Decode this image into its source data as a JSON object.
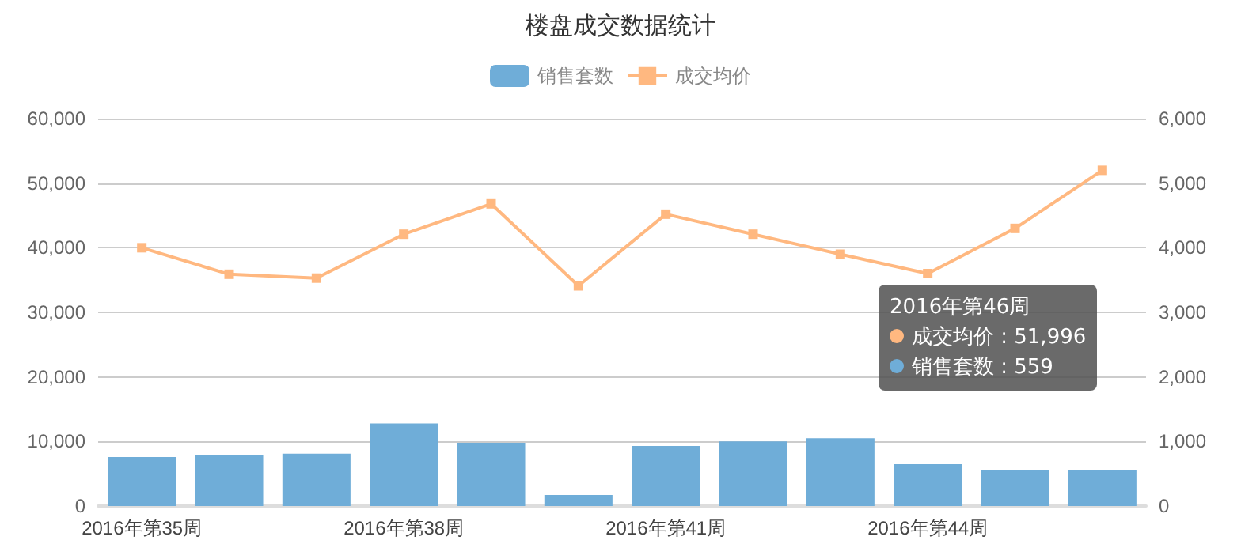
{
  "chart_data": {
    "type": "bar",
    "title": "楼盘成交数据统计",
    "categories": [
      "2016年第35周",
      null,
      null,
      "2016年第38周",
      null,
      null,
      "2016年第41周",
      null,
      null,
      "2016年第44周",
      null,
      null
    ],
    "series": [
      {
        "name": "销售套数",
        "axis": "y2",
        "color": "#6fadd8",
        "values": [
          760,
          790,
          810,
          1280,
          980,
          170,
          930,
          1000,
          1050,
          650,
          550,
          559
        ]
      },
      {
        "name": "成交均价",
        "type": "line",
        "color": "#ffb880",
        "marker": "square",
        "values": [
          40000,
          35900,
          35300,
          42100,
          46800,
          34100,
          45200,
          42100,
          39000,
          36000,
          43000,
          51996
        ]
      }
    ],
    "ylim": [
      0,
      60000
    ],
    "yticks": [
      0,
      {
        "value": 10000,
        "label": "10,000"
      },
      {
        "value": 20000,
        "label": "20,000"
      },
      {
        "value": 30000,
        "label": "30,000"
      },
      {
        "value": 40000,
        "label": "40,000"
      },
      {
        "value": 50000,
        "label": "50,000"
      },
      {
        "value": 60000,
        "label": "60,000"
      }
    ],
    "y2lim": [
      0,
      6000
    ],
    "y2ticks": [
      0,
      {
        "value": 1000,
        "label": "1,000"
      },
      {
        "value": 2000,
        "label": "2,000"
      },
      {
        "value": 3000,
        "label": "3,000"
      },
      {
        "value": 4000,
        "label": "4,000"
      },
      {
        "value": 5000,
        "label": "5,000"
      },
      {
        "value": 6000,
        "label": "6,000"
      }
    ],
    "grid": "y",
    "legend": "top",
    "annotations": [
      "2016年第46周",
      "成交均价 : 51,996",
      "销售套数 : 559"
    ]
  }
}
